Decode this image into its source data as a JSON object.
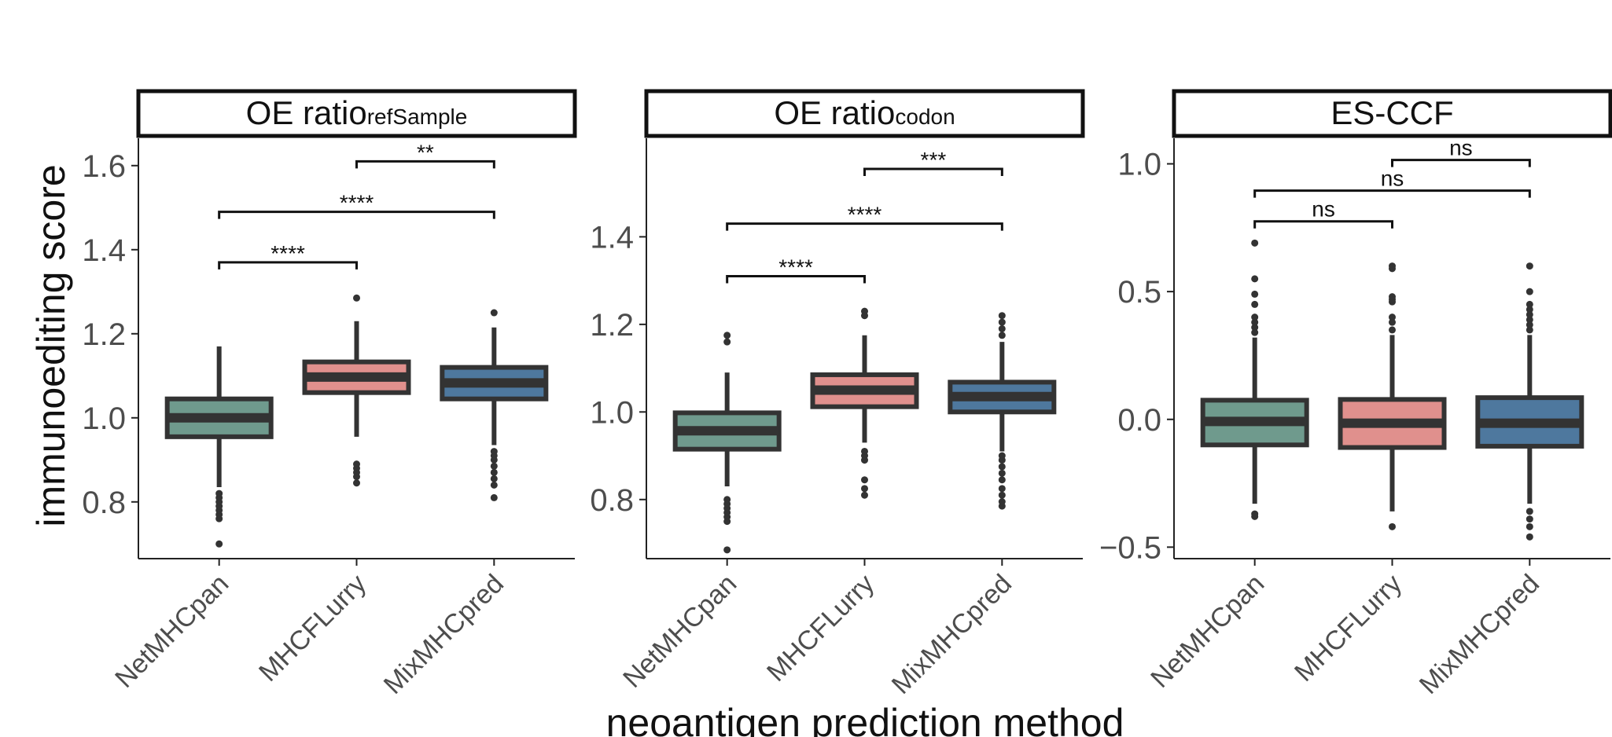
{
  "chart_data": {
    "type": "boxplot",
    "ylabel": "immunoediting score",
    "xlabel": "neoantigen prediction method",
    "categories": [
      "NetMHCpan",
      "MHCFLurry",
      "MixMHCpred"
    ],
    "colors": {
      "NetMHCpan": "#6f9a8d",
      "MHCFLurry": "#e0908d",
      "MixMHCpred": "#4e789e",
      "outline": "#333333"
    },
    "panels": [
      {
        "title": "OE ratio",
        "title_sub": "refSample",
        "ylim": [
          0.665,
          1.665
        ],
        "yticks": [
          0.8,
          1.0,
          1.2,
          1.4,
          1.6
        ],
        "ytick_labels": [
          "0.8",
          "1.0",
          "1.2",
          "1.4",
          "1.6"
        ],
        "boxes": [
          {
            "category": "NetMHCpan",
            "whisker_low": 0.835,
            "q1": 0.955,
            "median": 1.0,
            "q3": 1.045,
            "whisker_high": 1.17,
            "outliers": [
              0.7,
              0.76,
              0.77,
              0.78,
              0.79,
              0.8,
              0.81,
              0.82
            ]
          },
          {
            "category": "MHCFLurry",
            "whisker_low": 0.955,
            "q1": 1.06,
            "median": 1.097,
            "q3": 1.133,
            "whisker_high": 1.23,
            "outliers": [
              0.845,
              0.86,
              0.87,
              0.88,
              0.89,
              1.285
            ]
          },
          {
            "category": "MixMHCpred",
            "whisker_low": 0.935,
            "q1": 1.045,
            "median": 1.083,
            "q3": 1.12,
            "whisker_high": 1.215,
            "outliers": [
              0.81,
              0.84,
              0.855,
              0.87,
              0.885,
              0.9,
              0.91,
              0.92,
              1.25
            ]
          }
        ],
        "comparisons": [
          {
            "from": "NetMHCpan",
            "to": "MHCFLurry",
            "y": 1.37,
            "label": "****"
          },
          {
            "from": "NetMHCpan",
            "to": "MixMHCpred",
            "y": 1.49,
            "label": "****"
          },
          {
            "from": "MHCFLurry",
            "to": "MixMHCpred",
            "y": 1.61,
            "label": "**"
          }
        ]
      },
      {
        "title": "OE ratio",
        "title_sub": "codon",
        "ylim": [
          0.665,
          1.625
        ],
        "yticks": [
          0.8,
          1.0,
          1.2,
          1.4
        ],
        "ytick_labels": [
          "0.8",
          "1.0",
          "1.2",
          "1.4"
        ],
        "boxes": [
          {
            "category": "NetMHCpan",
            "whisker_low": 0.83,
            "q1": 0.915,
            "median": 0.957,
            "q3": 0.998,
            "whisker_high": 1.09,
            "outliers": [
              0.685,
              0.75,
              0.76,
              0.77,
              0.78,
              0.79,
              0.8,
              1.16,
              1.175
            ]
          },
          {
            "category": "MHCFLurry",
            "whisker_low": 0.93,
            "q1": 1.012,
            "median": 1.05,
            "q3": 1.085,
            "whisker_high": 1.175,
            "outliers": [
              0.81,
              0.825,
              0.845,
              0.89,
              0.9,
              0.91,
              1.22,
              1.23
            ]
          },
          {
            "category": "MixMHCpred",
            "whisker_low": 0.91,
            "q1": 1.0,
            "median": 1.035,
            "q3": 1.068,
            "whisker_high": 1.16,
            "outliers": [
              0.785,
              0.795,
              0.81,
              0.825,
              0.845,
              0.86,
              0.875,
              0.89,
              0.9,
              1.175,
              1.19,
              1.205,
              1.22
            ]
          }
        ],
        "comparisons": [
          {
            "from": "NetMHCpan",
            "to": "MHCFLurry",
            "y": 1.31,
            "label": "****"
          },
          {
            "from": "NetMHCpan",
            "to": "MixMHCpred",
            "y": 1.43,
            "label": "****"
          },
          {
            "from": "MHCFLurry",
            "to": "MixMHCpred",
            "y": 1.555,
            "label": "***"
          }
        ]
      },
      {
        "title": "ES-CCF",
        "title_sub": "",
        "ylim": [
          -0.545,
          1.1
        ],
        "yticks": [
          -0.5,
          0.0,
          0.5,
          1.0
        ],
        "ytick_labels": [
          "−0.5",
          "0.0",
          "0.5",
          "1.0"
        ],
        "boxes": [
          {
            "category": "NetMHCpan",
            "whisker_low": -0.33,
            "q1": -0.1,
            "median": -0.008,
            "q3": 0.075,
            "whisker_high": 0.32,
            "outliers": [
              -0.37,
              -0.38,
              0.34,
              0.36,
              0.38,
              0.4,
              0.45,
              0.49,
              0.55,
              0.69
            ]
          },
          {
            "category": "MHCFLurry",
            "whisker_low": -0.36,
            "q1": -0.11,
            "median": -0.015,
            "q3": 0.078,
            "whisker_high": 0.33,
            "outliers": [
              -0.42,
              0.35,
              0.38,
              0.4,
              0.46,
              0.47,
              0.48,
              0.59,
              0.6
            ]
          },
          {
            "category": "MixMHCpred",
            "whisker_low": -0.33,
            "q1": -0.105,
            "median": -0.015,
            "q3": 0.085,
            "whisker_high": 0.33,
            "outliers": [
              -0.36,
              -0.39,
              -0.42,
              -0.46,
              0.35,
              0.37,
              0.39,
              0.41,
              0.43,
              0.45,
              0.5,
              0.6
            ]
          }
        ],
        "comparisons": [
          {
            "from": "NetMHCpan",
            "to": "MHCFLurry",
            "y": 0.775,
            "label": "ns"
          },
          {
            "from": "NetMHCpan",
            "to": "MixMHCpred",
            "y": 0.895,
            "label": "ns"
          },
          {
            "from": "MHCFLurry",
            "to": "MixMHCpred",
            "y": 1.015,
            "label": "ns"
          }
        ]
      }
    ]
  }
}
